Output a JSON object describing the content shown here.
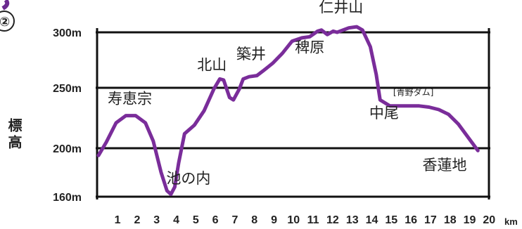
{
  "figure_number": "②",
  "chart_data": {
    "type": "line",
    "title": "",
    "xlabel": "",
    "ylabel": "標高",
    "x_unit": "km",
    "x_ticks": [
      1,
      2,
      3,
      4,
      5,
      6,
      7,
      8,
      9,
      10,
      11,
      12,
      13,
      14,
      15,
      16,
      17,
      18,
      19,
      20
    ],
    "y_ticks": [
      {
        "value": 160,
        "label": "160m"
      },
      {
        "value": 200,
        "label": "200m"
      },
      {
        "value": 250,
        "label": "250m"
      },
      {
        "value": 300,
        "label": "300m"
      }
    ],
    "xlim": [
      0.6,
      20.1
    ],
    "ylim": [
      155,
      310
    ],
    "grid": true,
    "color": "#7a2d9a",
    "series": [
      {
        "x": [
          0.6,
          1.0,
          1.5,
          2.0,
          2.5,
          3.0,
          3.4,
          3.8,
          4.1,
          4.3,
          4.5,
          4.7,
          5.0,
          5.5,
          6.0,
          6.5,
          6.8,
          7.0,
          7.3,
          7.5,
          7.8,
          8.0,
          8.3,
          8.7,
          9.0,
          9.5,
          10.0,
          10.5,
          11.0,
          11.4,
          11.8,
          12.0,
          12.3,
          12.6,
          12.8,
          13.1,
          13.4,
          13.8,
          14.1,
          14.5,
          14.8,
          15.0,
          15.5,
          16.0,
          16.5,
          17.0,
          17.5,
          18.0,
          18.5,
          19.0,
          19.5,
          20.0
        ],
        "y": [
          194,
          205,
          221,
          227,
          227,
          221,
          206,
          180,
          165,
          162,
          168,
          188,
          212,
          219,
          231,
          249,
          258,
          257,
          242,
          240,
          249,
          258,
          260,
          261,
          265,
          272,
          281,
          292,
          295,
          296,
          301,
          302,
          298,
          301,
          300,
          302,
          304,
          305,
          302,
          287,
          262,
          240,
          235,
          235,
          235,
          235,
          234,
          232,
          228,
          220,
          209,
          198
        ]
      }
    ],
    "annotations": [
      {
        "text": "寿恵宗",
        "x": 2.2,
        "y": 237
      },
      {
        "text": "池の内",
        "x": 5.2,
        "y": 171
      },
      {
        "text": "北山",
        "x": 6.4,
        "y": 266
      },
      {
        "text": "築井",
        "x": 8.4,
        "y": 276
      },
      {
        "text": "稗原",
        "x": 11.4,
        "y": 282
      },
      {
        "text": "仁井山",
        "x": 13.0,
        "y": 318
      },
      {
        "text": "[青野ダム]",
        "x": 16.7,
        "y": 244
      },
      {
        "text": "中尾",
        "x": 15.2,
        "y": 225
      },
      {
        "text": "香蓮地",
        "x": 18.3,
        "y": 182
      }
    ]
  }
}
